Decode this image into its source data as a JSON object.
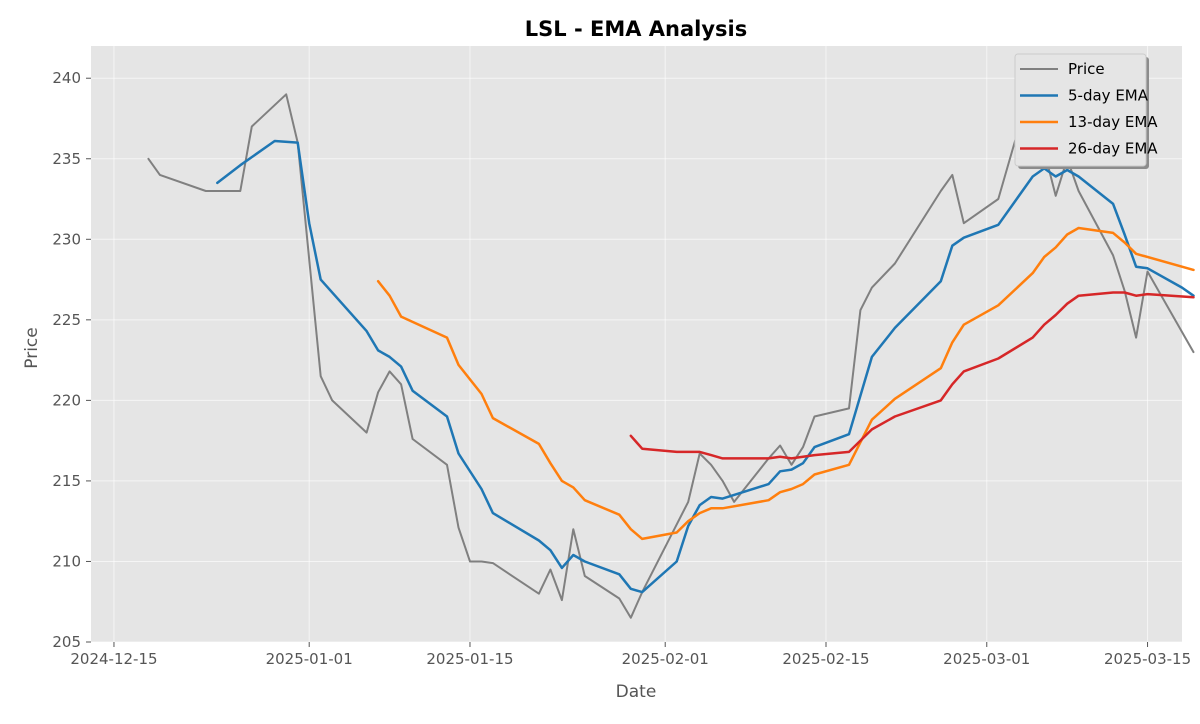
{
  "chart_data": {
    "type": "line",
    "title": "LSL - EMA Analysis",
    "xlabel": "Date",
    "ylabel": "Price",
    "xlim": [
      "2024-12-13",
      "2025-03-18"
    ],
    "ylim": [
      205,
      242
    ],
    "x_ticks": [
      "2024-12-15",
      "2025-01-01",
      "2025-01-15",
      "2025-02-01",
      "2025-02-15",
      "2025-03-01",
      "2025-03-15"
    ],
    "y_ticks": [
      205,
      210,
      215,
      220,
      225,
      230,
      235,
      240
    ],
    "grid": true,
    "legend_position": "top-right",
    "colors": {
      "background": "#e5e5e5",
      "grid": "#ffffff",
      "price": "#808080",
      "ema5": "#1f77b4",
      "ema13": "#ff7f0e",
      "ema26": "#d62728"
    },
    "series": [
      {
        "name": "Price",
        "color": "#808080",
        "points": [
          [
            "2024-12-18",
            235.0
          ],
          [
            "2024-12-19",
            234.0
          ],
          [
            "2024-12-23",
            233.0
          ],
          [
            "2024-12-24",
            233.0
          ],
          [
            "2024-12-26",
            233.0
          ],
          [
            "2024-12-27",
            237.0
          ],
          [
            "2024-12-30",
            239.0
          ],
          [
            "2024-12-31",
            236.0
          ],
          [
            "2025-01-02",
            221.5
          ],
          [
            "2025-01-03",
            220.0
          ],
          [
            "2025-01-06",
            218.0
          ],
          [
            "2025-01-07",
            220.5
          ],
          [
            "2025-01-08",
            221.8
          ],
          [
            "2025-01-09",
            221.0
          ],
          [
            "2025-01-10",
            217.6
          ],
          [
            "2025-01-13",
            216.0
          ],
          [
            "2025-01-14",
            212.1
          ],
          [
            "2025-01-15",
            210.0
          ],
          [
            "2025-01-16",
            210.0
          ],
          [
            "2025-01-17",
            209.9
          ],
          [
            "2025-01-21",
            208.0
          ],
          [
            "2025-01-22",
            209.5
          ],
          [
            "2025-01-23",
            207.6
          ],
          [
            "2025-01-24",
            212.0
          ],
          [
            "2025-01-25",
            209.1
          ],
          [
            "2025-01-28",
            207.7
          ],
          [
            "2025-01-29",
            206.5
          ],
          [
            "2025-01-30",
            208.1
          ],
          [
            "2025-02-03",
            213.7
          ],
          [
            "2025-02-04",
            216.7
          ],
          [
            "2025-02-05",
            216.0
          ],
          [
            "2025-02-06",
            215.0
          ],
          [
            "2025-02-07",
            213.7
          ],
          [
            "2025-02-10",
            216.4
          ],
          [
            "2025-02-11",
            217.2
          ],
          [
            "2025-02-12",
            216.0
          ],
          [
            "2025-02-13",
            217.1
          ],
          [
            "2025-02-14",
            219.0
          ],
          [
            "2025-02-17",
            219.5
          ],
          [
            "2025-02-18",
            225.6
          ],
          [
            "2025-02-19",
            227.0
          ],
          [
            "2025-02-21",
            228.5
          ],
          [
            "2025-02-25",
            233.0
          ],
          [
            "2025-02-26",
            234.0
          ],
          [
            "2025-02-27",
            231.0
          ],
          [
            "2025-03-02",
            232.5
          ],
          [
            "2025-03-05",
            239.9
          ],
          [
            "2025-03-06",
            235.5
          ],
          [
            "2025-03-07",
            232.7
          ],
          [
            "2025-03-08",
            235.0
          ],
          [
            "2025-03-09",
            233.0
          ],
          [
            "2025-03-12",
            229.0
          ],
          [
            "2025-03-13",
            226.8
          ],
          [
            "2025-03-14",
            223.9
          ],
          [
            "2025-03-15",
            228.0
          ],
          [
            "2025-03-19",
            223.0
          ]
        ]
      },
      {
        "name": "5-day EMA",
        "color": "#1f77b4",
        "points": [
          [
            "2024-12-24",
            233.5
          ],
          [
            "2024-12-26",
            234.6
          ],
          [
            "2024-12-29",
            236.1
          ],
          [
            "2024-12-31",
            236.0
          ],
          [
            "2025-01-01",
            231.0
          ],
          [
            "2025-01-02",
            227.5
          ],
          [
            "2025-01-06",
            224.3
          ],
          [
            "2025-01-07",
            223.1
          ],
          [
            "2025-01-08",
            222.7
          ],
          [
            "2025-01-09",
            222.1
          ],
          [
            "2025-01-10",
            220.6
          ],
          [
            "2025-01-13",
            219.0
          ],
          [
            "2025-01-14",
            216.7
          ],
          [
            "2025-01-16",
            214.5
          ],
          [
            "2025-01-17",
            213.0
          ],
          [
            "2025-01-21",
            211.3
          ],
          [
            "2025-01-22",
            210.7
          ],
          [
            "2025-01-23",
            209.6
          ],
          [
            "2025-01-24",
            210.4
          ],
          [
            "2025-01-25",
            210.0
          ],
          [
            "2025-01-28",
            209.2
          ],
          [
            "2025-01-29",
            208.3
          ],
          [
            "2025-01-30",
            208.1
          ],
          [
            "2025-02-02",
            210.0
          ],
          [
            "2025-02-03",
            212.2
          ],
          [
            "2025-02-04",
            213.5
          ],
          [
            "2025-02-05",
            214.0
          ],
          [
            "2025-02-06",
            213.9
          ],
          [
            "2025-02-10",
            214.8
          ],
          [
            "2025-02-11",
            215.6
          ],
          [
            "2025-02-12",
            215.7
          ],
          [
            "2025-02-13",
            216.1
          ],
          [
            "2025-02-14",
            217.1
          ],
          [
            "2025-02-17",
            217.9
          ],
          [
            "2025-02-19",
            222.7
          ],
          [
            "2025-02-21",
            224.5
          ],
          [
            "2025-02-25",
            227.4
          ],
          [
            "2025-02-26",
            229.6
          ],
          [
            "2025-02-27",
            230.1
          ],
          [
            "2025-03-02",
            230.9
          ],
          [
            "2025-03-05",
            233.9
          ],
          [
            "2025-03-06",
            234.4
          ],
          [
            "2025-03-07",
            233.9
          ],
          [
            "2025-03-08",
            234.3
          ],
          [
            "2025-03-09",
            233.9
          ],
          [
            "2025-03-12",
            232.2
          ],
          [
            "2025-03-13",
            230.3
          ],
          [
            "2025-03-14",
            228.3
          ],
          [
            "2025-03-15",
            228.2
          ],
          [
            "2025-03-18",
            227.0
          ],
          [
            "2025-03-19",
            226.5
          ]
        ]
      },
      {
        "name": "13-day EMA",
        "color": "#ff7f0e",
        "points": [
          [
            "2025-01-07",
            227.4
          ],
          [
            "2025-01-08",
            226.5
          ],
          [
            "2025-01-09",
            225.2
          ],
          [
            "2025-01-13",
            223.9
          ],
          [
            "2025-01-14",
            222.2
          ],
          [
            "2025-01-16",
            220.4
          ],
          [
            "2025-01-17",
            218.9
          ],
          [
            "2025-01-21",
            217.3
          ],
          [
            "2025-01-22",
            216.1
          ],
          [
            "2025-01-23",
            215.0
          ],
          [
            "2025-01-24",
            214.6
          ],
          [
            "2025-01-25",
            213.8
          ],
          [
            "2025-01-28",
            212.9
          ],
          [
            "2025-01-29",
            212.0
          ],
          [
            "2025-01-30",
            211.4
          ],
          [
            "2025-02-02",
            211.8
          ],
          [
            "2025-02-03",
            212.5
          ],
          [
            "2025-02-04",
            213.0
          ],
          [
            "2025-02-05",
            213.3
          ],
          [
            "2025-02-06",
            213.3
          ],
          [
            "2025-02-10",
            213.8
          ],
          [
            "2025-02-11",
            214.3
          ],
          [
            "2025-02-12",
            214.5
          ],
          [
            "2025-02-13",
            214.8
          ],
          [
            "2025-02-14",
            215.4
          ],
          [
            "2025-02-17",
            216.0
          ],
          [
            "2025-02-19",
            218.8
          ],
          [
            "2025-02-21",
            220.1
          ],
          [
            "2025-02-25",
            222.0
          ],
          [
            "2025-02-26",
            223.6
          ],
          [
            "2025-02-27",
            224.7
          ],
          [
            "2025-03-02",
            225.9
          ],
          [
            "2025-03-05",
            227.9
          ],
          [
            "2025-03-06",
            228.9
          ],
          [
            "2025-03-07",
            229.5
          ],
          [
            "2025-03-08",
            230.3
          ],
          [
            "2025-03-09",
            230.7
          ],
          [
            "2025-03-12",
            230.4
          ],
          [
            "2025-03-13",
            229.8
          ],
          [
            "2025-03-14",
            229.1
          ],
          [
            "2025-03-19",
            228.1
          ]
        ]
      },
      {
        "name": "26-day EMA",
        "color": "#d62728",
        "points": [
          [
            "2025-01-29",
            217.8
          ],
          [
            "2025-01-30",
            217.0
          ],
          [
            "2025-02-02",
            216.8
          ],
          [
            "2025-02-04",
            216.8
          ],
          [
            "2025-02-05",
            216.6
          ],
          [
            "2025-02-06",
            216.4
          ],
          [
            "2025-02-10",
            216.4
          ],
          [
            "2025-02-11",
            216.5
          ],
          [
            "2025-02-12",
            216.4
          ],
          [
            "2025-02-13",
            216.5
          ],
          [
            "2025-02-14",
            216.6
          ],
          [
            "2025-02-17",
            216.8
          ],
          [
            "2025-02-19",
            218.2
          ],
          [
            "2025-02-21",
            219.0
          ],
          [
            "2025-02-25",
            220.0
          ],
          [
            "2025-02-26",
            221.0
          ],
          [
            "2025-02-27",
            221.8
          ],
          [
            "2025-03-02",
            222.6
          ],
          [
            "2025-03-05",
            223.9
          ],
          [
            "2025-03-06",
            224.7
          ],
          [
            "2025-03-07",
            225.3
          ],
          [
            "2025-03-08",
            226.0
          ],
          [
            "2025-03-09",
            226.5
          ],
          [
            "2025-03-12",
            226.7
          ],
          [
            "2025-03-13",
            226.7
          ],
          [
            "2025-03-14",
            226.5
          ],
          [
            "2025-03-15",
            226.6
          ],
          [
            "2025-03-19",
            226.4
          ]
        ]
      }
    ]
  }
}
